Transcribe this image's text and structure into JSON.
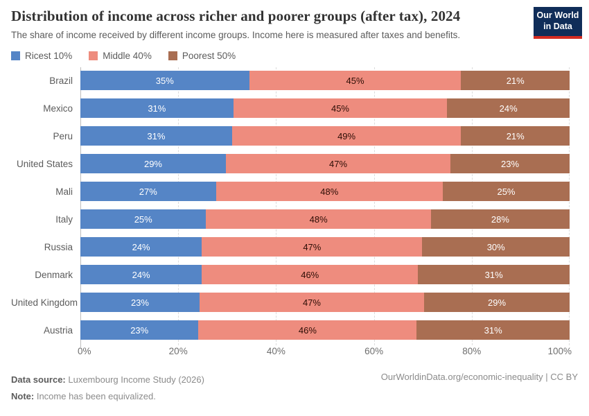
{
  "header": {
    "title": "Distribution of income across richer and poorer groups (after tax), 2024",
    "subtitle": "The share of income received by different income groups. Income here is measured after taxes and benefits.",
    "logo": {
      "line1": "Our World",
      "line2": "in Data",
      "bg_color": "#102d59",
      "accent_color": "#d42b21"
    }
  },
  "legend": [
    {
      "label": "Ricest 10%",
      "color": "#5585c6"
    },
    {
      "label": "Middle 40%",
      "color": "#ee8c7e"
    },
    {
      "label": "Poorest 50%",
      "color": "#a96e52"
    }
  ],
  "chart_data": {
    "type": "bar",
    "orientation": "horizontal",
    "stacked": true,
    "value_suffix": "%",
    "grid": "dashed-vertical",
    "xlim": [
      0,
      100
    ],
    "x_ticks": [
      "0%",
      "20%",
      "40%",
      "60%",
      "80%",
      "100%"
    ],
    "categories": [
      "Brazil",
      "Mexico",
      "Peru",
      "United States",
      "Mali",
      "Italy",
      "Russia",
      "Denmark",
      "United Kingdom",
      "Austria"
    ],
    "series": [
      {
        "name": "Ricest 10%",
        "color": "#5585c6",
        "text_color": "#ffffff",
        "values": [
          35,
          31,
          31,
          29,
          27,
          25,
          24,
          24,
          23,
          23
        ]
      },
      {
        "name": "Middle 40%",
        "color": "#ee8c7e",
        "text_color": "#2d0d05",
        "values": [
          45,
          45,
          49,
          47,
          48,
          48,
          47,
          46,
          47,
          46
        ]
      },
      {
        "name": "Poorest 50%",
        "color": "#a96e52",
        "text_color": "#ffffff",
        "values": [
          21,
          24,
          21,
          23,
          25,
          28,
          30,
          31,
          29,
          31
        ]
      }
    ]
  },
  "footer": {
    "source_label": "Data source:",
    "source_text": " Luxembourg Income Study (2026)",
    "note_label": "Note:",
    "note_text": " Income has been equivalized.",
    "right_text": "OurWorldinData.org/economic-inequality | CC BY"
  }
}
